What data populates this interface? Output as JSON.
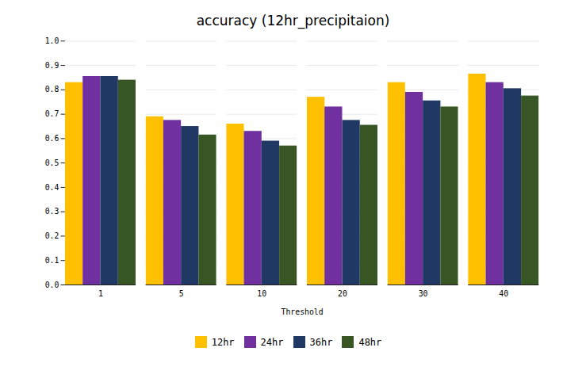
{
  "chart_data": {
    "type": "bar",
    "title": "accuracy (12hr_precipitaion)",
    "xlabel": "Threshold",
    "categories": [
      1,
      5,
      10,
      20,
      30,
      40
    ],
    "series": [
      {
        "name": "12hr",
        "color": "#FFC000",
        "values": [
          0.83,
          0.69,
          0.66,
          0.77,
          0.83,
          0.865
        ]
      },
      {
        "name": "24hr",
        "color": "#7030A0",
        "values": [
          0.855,
          0.675,
          0.63,
          0.73,
          0.79,
          0.83
        ]
      },
      {
        "name": "36hr",
        "color": "#1F3864",
        "values": [
          0.855,
          0.65,
          0.59,
          0.675,
          0.755,
          0.805
        ]
      },
      {
        "name": "48hr",
        "color": "#375623",
        "values": [
          0.84,
          0.615,
          0.57,
          0.655,
          0.73,
          0.775
        ]
      }
    ],
    "ylim": [
      0,
      1.0
    ],
    "yticks": [
      0,
      0.1,
      0.2,
      0.3,
      0.4,
      0.5,
      0.6,
      0.7,
      0.8,
      0.9,
      1
    ],
    "grid": true,
    "legend": "bottom"
  }
}
